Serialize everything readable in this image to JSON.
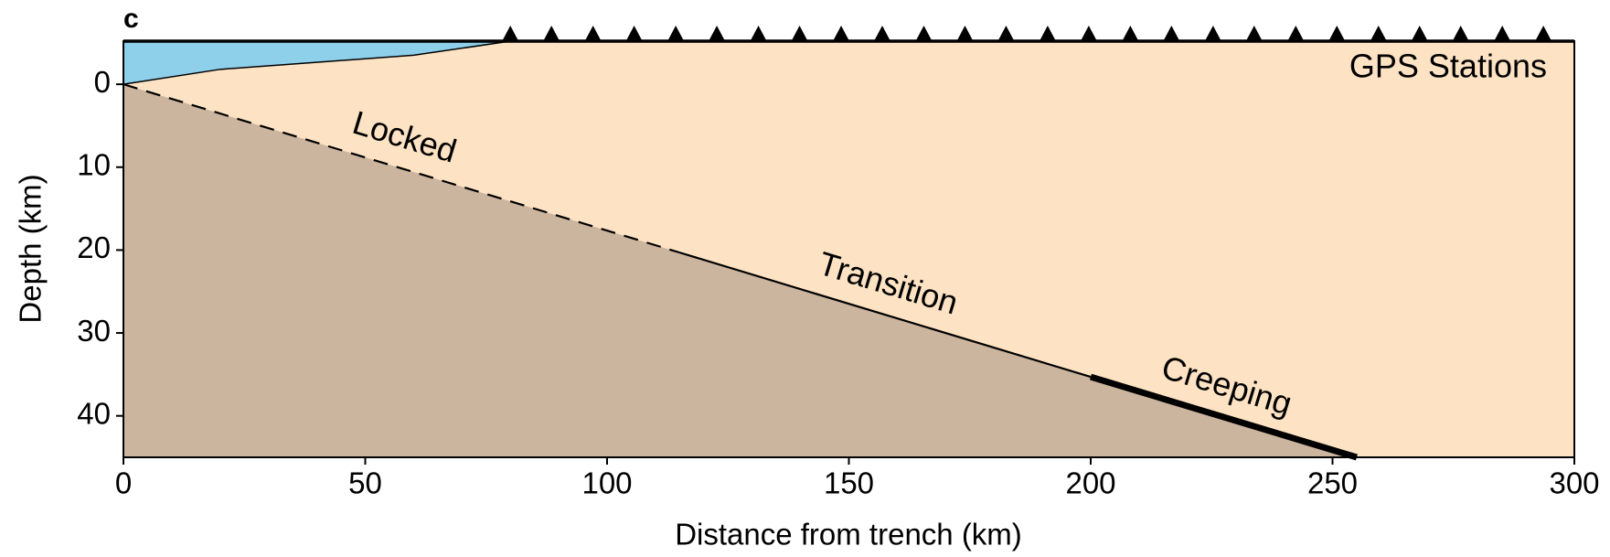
{
  "chart_data": {
    "type": "profile",
    "panel_label": "c",
    "xlabel": "Distance from trench (km)",
    "ylabel": "Depth (km)",
    "xlim": [
      0,
      300
    ],
    "ylim": [
      -5.2,
      45
    ],
    "invert_y": true,
    "xticks": [
      0,
      50,
      100,
      150,
      200,
      250,
      300
    ],
    "yticks": [
      0,
      10,
      20,
      30,
      40
    ],
    "colors": {
      "water": "#8ecfea",
      "crust": "#fde3c4",
      "slab": "#ccb59e"
    },
    "water": {
      "x": [
        0,
        20,
        60,
        80
      ],
      "depth": [
        0,
        -1.8,
        -3.5,
        -5.2
      ]
    },
    "fault": [
      {
        "name": "Locked",
        "x": [
          0,
          115
        ],
        "depth": [
          0,
          20.3
        ],
        "style": "dashed"
      },
      {
        "name": "Transition",
        "x": [
          115,
          200
        ],
        "depth": [
          20.3,
          35.3
        ],
        "style": "thin"
      },
      {
        "name": "Creeping",
        "x": [
          200,
          255
        ],
        "depth": [
          35.3,
          45
        ],
        "style": "thick"
      }
    ],
    "stations": {
      "name": "GPS Stations",
      "x": [
        80,
        88.5,
        97.1,
        105.6,
        114.2,
        122.7,
        131.3,
        139.8,
        148.4,
        156.9,
        165.5,
        174.0,
        182.5,
        191.1,
        199.6,
        208.2,
        216.7,
        225.3,
        233.8,
        242.4,
        250.9,
        259.5,
        268.0,
        276.5,
        285.1,
        293.6
      ]
    }
  }
}
